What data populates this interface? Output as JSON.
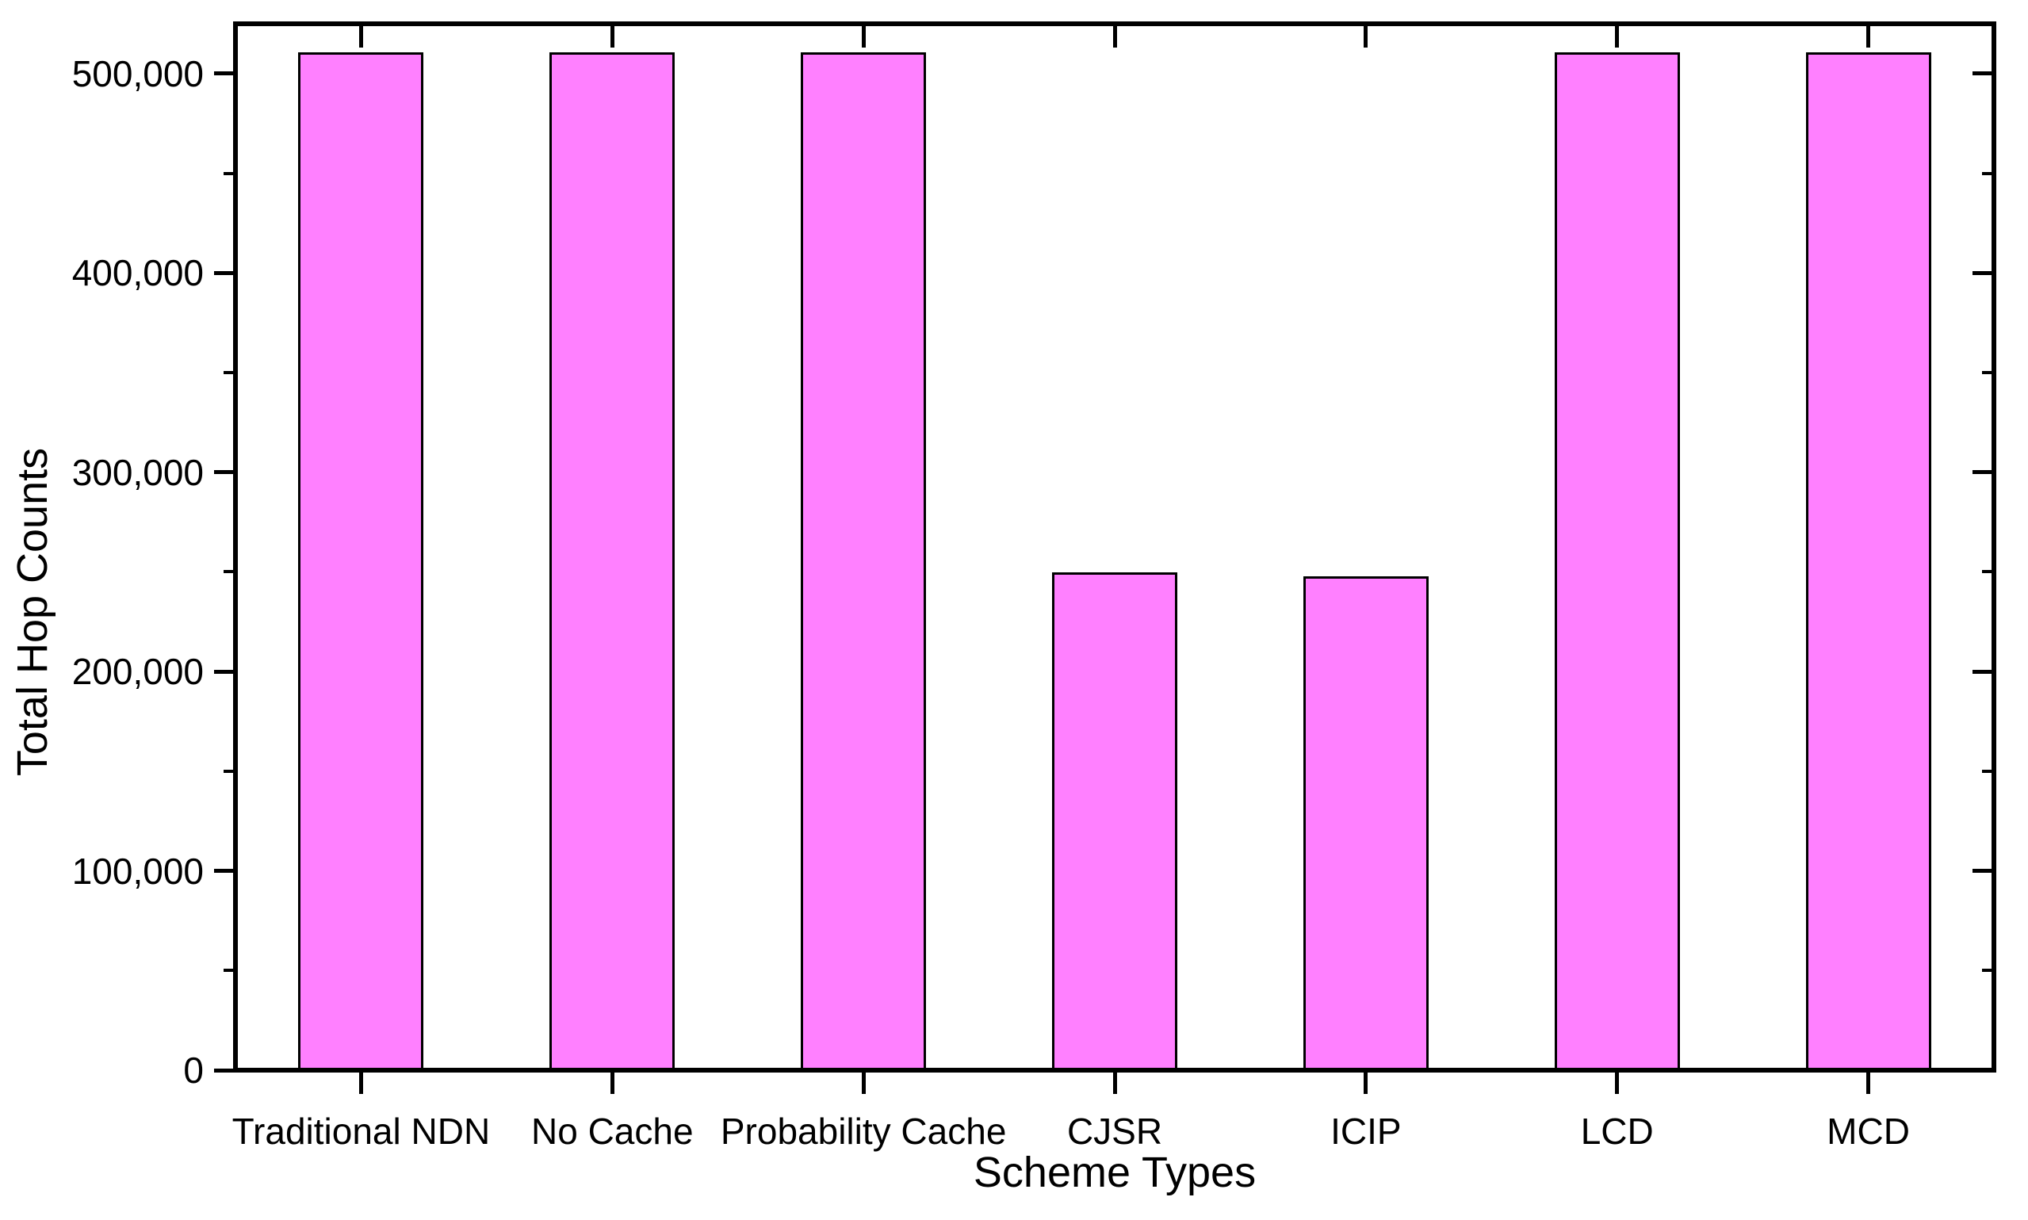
{
  "chart_data": {
    "type": "bar",
    "title": "",
    "xlabel": "Scheme Types",
    "ylabel": "Total Hop Counts",
    "categories": [
      "Traditional NDN",
      "No Cache",
      "Probability Cache",
      "CJSR",
      "ICIP",
      "LCD",
      "MCD"
    ],
    "values": [
      510000,
      510000,
      510000,
      249000,
      247000,
      510000,
      510000
    ],
    "ylim": [
      0,
      525000
    ],
    "yticks": [
      {
        "value": 0,
        "label": "0"
      },
      {
        "value": 100000,
        "label": "100,000"
      },
      {
        "value": 200000,
        "label": "200,000"
      },
      {
        "value": 300000,
        "label": "300,000"
      },
      {
        "value": 400000,
        "label": "400,000"
      },
      {
        "value": 500000,
        "label": "500,000"
      }
    ],
    "minor_yticks": [
      50000,
      150000,
      250000,
      350000,
      450000
    ],
    "grid": false,
    "legend": false,
    "colors": {
      "bar_fill": "#ff80ff",
      "bar_border": "#000000",
      "axis": "#000000",
      "background": "#ffffff"
    }
  }
}
